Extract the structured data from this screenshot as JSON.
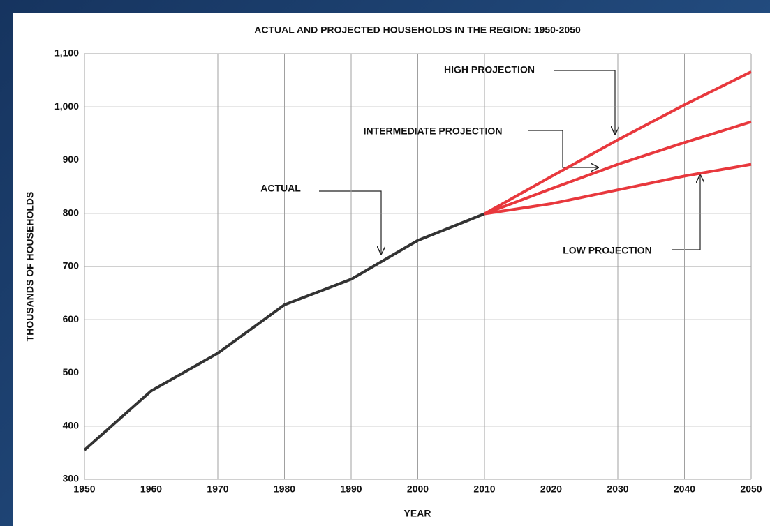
{
  "chart_data": {
    "type": "line",
    "title": "ACTUAL AND PROJECTED HOUSEHOLDS IN THE REGION: 1950-2050",
    "x_label": "YEAR",
    "y_label": "THOUSANDS OF HOUSEHOLDS",
    "x": [
      1950,
      1960,
      1970,
      1980,
      1990,
      2000,
      2010,
      2020,
      2030,
      2040,
      2050
    ],
    "series": [
      {
        "color": "#333333",
        "values": [
          355,
          466,
          537,
          628,
          676,
          749,
          799,
          null,
          null,
          null,
          null
        ]
      },
      {
        "color": "#e8383d",
        "values": [
          null,
          null,
          null,
          null,
          null,
          null,
          799,
          869,
          938,
          1004,
          1066
        ]
      },
      {
        "color": "#e8383d",
        "values": [
          null,
          null,
          null,
          null,
          null,
          null,
          799,
          846,
          892,
          933,
          972
        ]
      },
      {
        "color": "#e8383d",
        "values": [
          null,
          null,
          null,
          null,
          null,
          null,
          799,
          818,
          844,
          870,
          892
        ]
      }
    ],
    "annotations": [
      "HIGH PROJECTION",
      "INTERMEDIATE PROJECTION",
      "ACTUAL",
      "LOW PROJECTION"
    ],
    "xlim": [
      1950,
      2050
    ],
    "xticks": [
      1950,
      1960,
      1970,
      1980,
      1990,
      2000,
      2010,
      2020,
      2030,
      2040,
      2050
    ],
    "ylim": [
      300,
      1100
    ],
    "yticks": [
      300,
      400,
      500,
      600,
      700,
      800,
      900,
      {
        "value": 1000,
        "label": "1,000"
      },
      {
        "value": 1100,
        "label": "1,100"
      }
    ],
    "grid": true
  }
}
